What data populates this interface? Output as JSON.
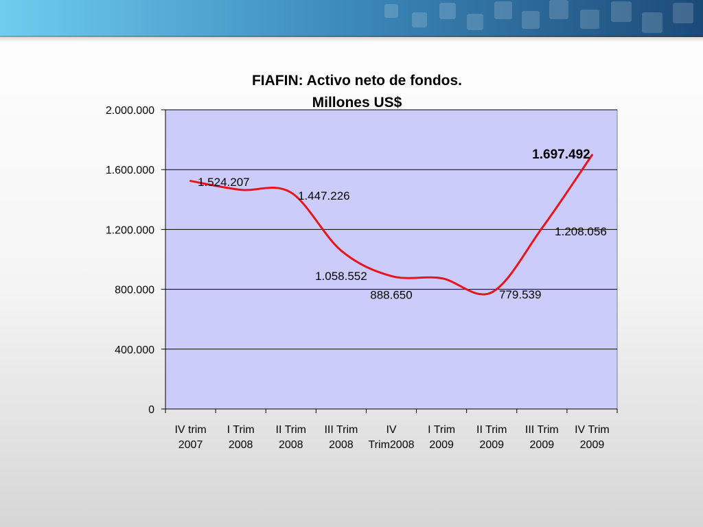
{
  "chart_data": {
    "type": "line",
    "title": [
      "FIAFIN: Activo neto de fondos.",
      "Millones US$"
    ],
    "xlabel": "",
    "ylabel": "",
    "categories": [
      [
        "IV trim",
        "2007"
      ],
      [
        "I Trim",
        "2008"
      ],
      [
        "II Trim",
        "2008"
      ],
      [
        "III Trim",
        "2008"
      ],
      [
        "IV",
        "Trim2008"
      ],
      [
        "I Trim",
        "2009"
      ],
      [
        "II Trim",
        "2009"
      ],
      [
        "III Trim",
        "2009"
      ],
      [
        "IV Trim",
        "2009"
      ]
    ],
    "ylim": [
      0,
      2000000
    ],
    "yticks": [
      0,
      400000,
      800000,
      1200000,
      1600000,
      2000000
    ],
    "ytick_labels": [
      "0",
      "400.000",
      "800.000",
      "1.200.000",
      "1.600.000",
      "2.000.000"
    ],
    "grid": true,
    "series": [
      {
        "color": "#e8141c",
        "values": [
          1524207,
          1465000,
          1447226,
          1058552,
          888650,
          874000,
          779539,
          1208056,
          1697492
        ],
        "labels": [
          "1.524.207",
          "",
          "1.447.226",
          "1.058.552",
          "888.650",
          "",
          "779.539",
          "1.208.056",
          "1.697.492"
        ]
      }
    ],
    "plot_background": "#ccccfb",
    "line_color": "#e8141c"
  },
  "theme": {
    "banner_dark": "#1f4e7d",
    "banner_light": "#62bfe6"
  }
}
